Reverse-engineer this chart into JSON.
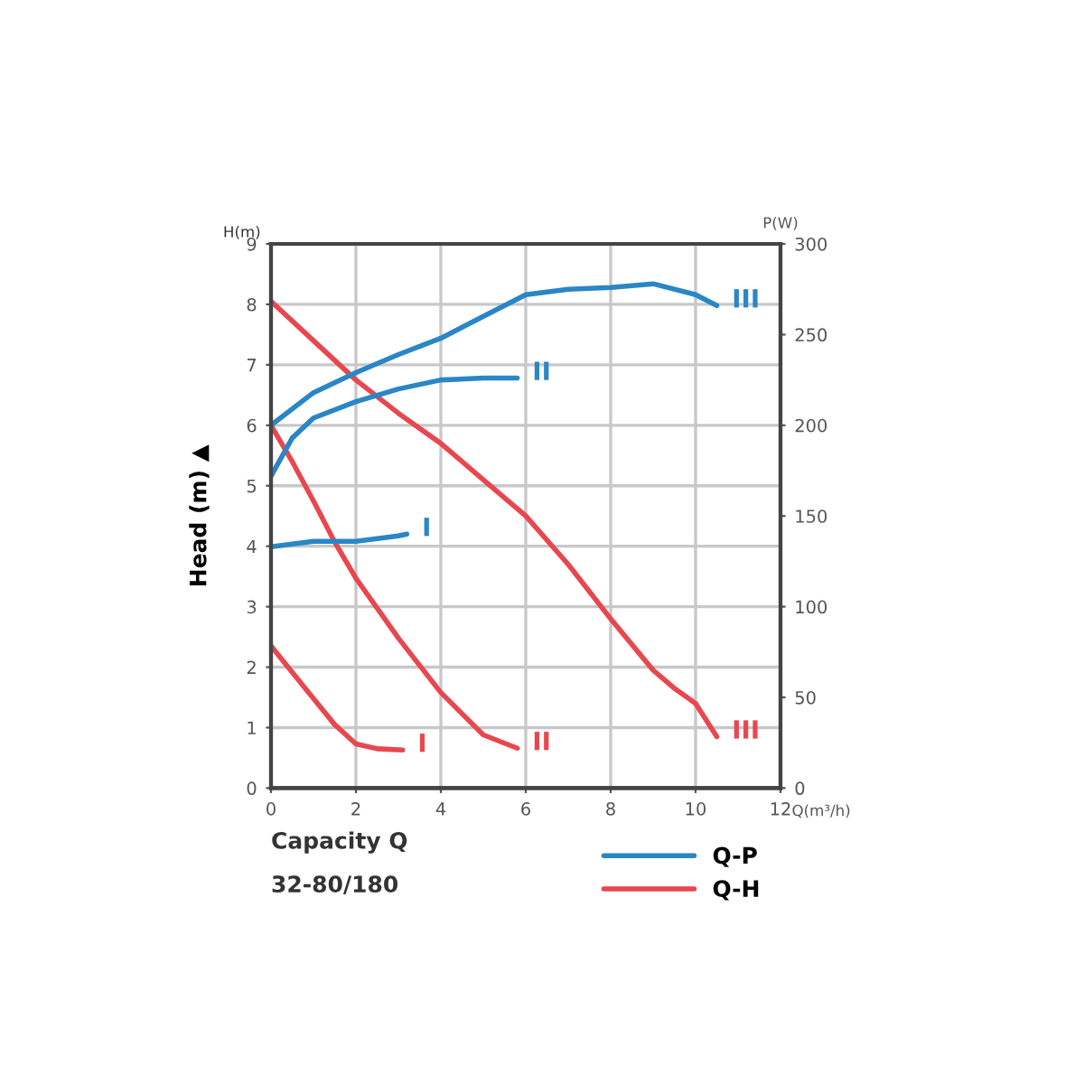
{
  "chart_data": {
    "type": "line",
    "xlabel": "Q(m³/h)",
    "ylabel": "Head (m) ▲",
    "y2label": "P(W)",
    "xlim": [
      0,
      12
    ],
    "xticks": [
      0,
      2,
      4,
      6,
      8,
      10,
      12
    ],
    "ylim": [
      0,
      9
    ],
    "yticks": [
      0,
      1,
      2,
      3,
      4,
      5,
      6,
      7,
      8,
      9
    ],
    "y2lim": [
      0,
      300
    ],
    "y2ticks": [
      0,
      50,
      100,
      150,
      200,
      250,
      300
    ],
    "grid": true,
    "legend": "bottom right",
    "line_style": "solid",
    "marker": "none",
    "series": [
      {
        "name": "Q-P",
        "axis": "y2",
        "color": "#2a86c6",
        "x": [
          0,
          1,
          2,
          3,
          3.2
        ],
        "values": [
          133,
          136,
          136,
          139,
          140
        ]
      },
      {
        "axis": "y2",
        "color": "#2a86c6",
        "x": [
          0,
          0.5,
          1,
          2,
          3,
          4,
          5,
          5.8
        ],
        "values": [
          172,
          193,
          204,
          213,
          220,
          225,
          226,
          226
        ]
      },
      {
        "axis": "y2",
        "color": "#2a86c6",
        "x": [
          0,
          1,
          2,
          3,
          4,
          5,
          6,
          7,
          8,
          9,
          10,
          10.5
        ],
        "values": [
          200,
          218,
          229,
          239,
          248,
          260,
          272,
          275,
          276,
          278,
          272,
          266
        ]
      },
      {
        "name": "Q-H",
        "color": "#e8474f",
        "x": [
          0,
          1,
          1.5,
          2,
          2.5,
          3.1
        ],
        "values": [
          2.35,
          1.48,
          1.05,
          0.73,
          0.65,
          0.63
        ]
      },
      {
        "color": "#e8474f",
        "x": [
          0,
          0.5,
          1,
          1.5,
          2,
          3,
          4,
          5,
          5.8
        ],
        "values": [
          6.0,
          5.4,
          4.75,
          4.07,
          3.47,
          2.48,
          1.58,
          0.88,
          0.66
        ]
      },
      {
        "color": "#e8474f",
        "x": [
          0,
          1,
          2,
          3,
          4,
          5,
          6,
          7,
          8,
          9,
          9.5,
          10,
          10.5
        ],
        "values": [
          8.05,
          7.4,
          6.75,
          6.2,
          5.7,
          5.1,
          4.5,
          3.7,
          2.8,
          1.95,
          1.65,
          1.4,
          0.85
        ]
      }
    ],
    "annotations": [
      "H(m)",
      "Capacity Q",
      "32-80/180",
      "I",
      "II",
      "III",
      "I",
      "II",
      "III"
    ]
  }
}
